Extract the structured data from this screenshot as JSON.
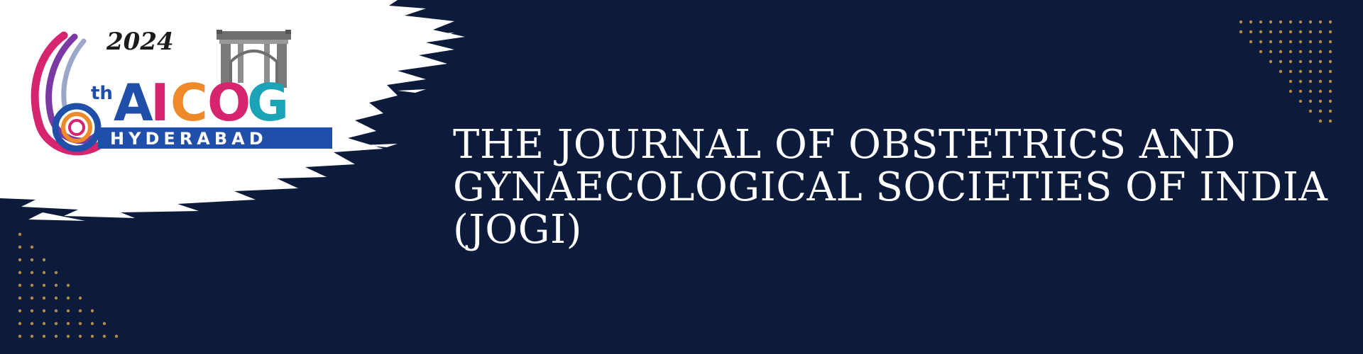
{
  "logo": {
    "year": "2024",
    "edition_sup": "th",
    "edition_num": "6",
    "letters": [
      "A",
      "I",
      "C",
      "O",
      "G"
    ],
    "city": "HYDERABAD",
    "emblem_icon": "charminar-gate-icon"
  },
  "heading": {
    "lines": [
      "THE JOURNAL OF OBSTETRICS AND",
      "GYNAECOLOGICAL SOCIETIES OF INDIA",
      "(JOGI)"
    ]
  },
  "colors": {
    "background": "#0c1a3c",
    "title_text": "#ffffff",
    "dots": "#b58a45",
    "brush": "#ffffff",
    "logo_blue": "#1f4fa8",
    "logo_magenta": "#d6246e",
    "logo_orange": "#ee8a2a",
    "logo_purple": "#7b3aa3",
    "logo_teal": "#1aa4b5"
  }
}
